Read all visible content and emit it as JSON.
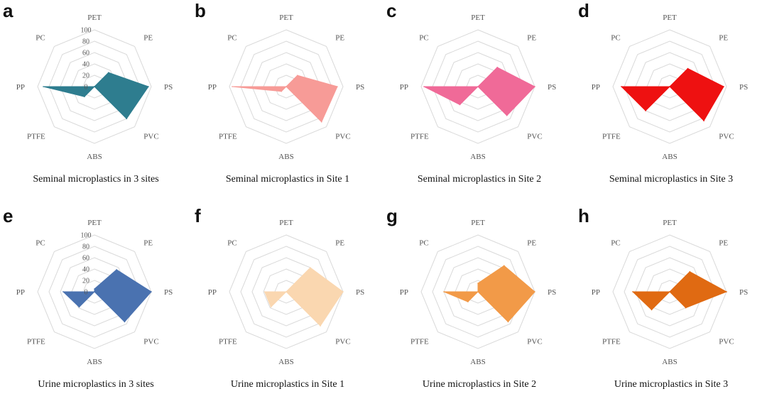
{
  "chart_data": [
    {
      "type": "radar",
      "letter": "a",
      "title": "Seminal microplastics  in 3 sites",
      "axes": [
        "PET",
        "PE",
        "PS",
        "PVC",
        "ABS",
        "PTFE",
        "PP",
        "PC"
      ],
      "rticks": [
        20,
        40,
        60,
        80,
        100
      ],
      "show_tick_labels": true,
      "rlim": [
        0,
        100
      ],
      "color": "#2e7d8f",
      "values": [
        0,
        35,
        95,
        80,
        0,
        25,
        90,
        0
      ]
    },
    {
      "type": "radar",
      "letter": "b",
      "title": "Seminal microplastics  in Site 1",
      "axes": [
        "PET",
        "PE",
        "PS",
        "PVC",
        "ABS",
        "PTFE",
        "PP",
        "PC"
      ],
      "rticks": [
        20,
        40,
        60,
        80,
        100
      ],
      "show_tick_labels": false,
      "rlim": [
        0,
        100
      ],
      "color": "#f79b97",
      "values": [
        0,
        28,
        90,
        88,
        0,
        12,
        95,
        0
      ]
    },
    {
      "type": "radar",
      "letter": "c",
      "title": "Seminal microplastics  in Site 2",
      "axes": [
        "PET",
        "PE",
        "PS",
        "PVC",
        "ABS",
        "PTFE",
        "PP",
        "PC"
      ],
      "rticks": [
        20,
        40,
        60,
        80,
        100
      ],
      "show_tick_labels": false,
      "rlim": [
        0,
        100
      ],
      "color": "#f06a98",
      "values": [
        0,
        48,
        100,
        72,
        0,
        45,
        95,
        0
      ]
    },
    {
      "type": "radar",
      "letter": "d",
      "title": "Seminal microplastics  in Site 3",
      "axes": [
        "PET",
        "PE",
        "PS",
        "PVC",
        "ABS",
        "PTFE",
        "PP",
        "PC"
      ],
      "rticks": [
        20,
        40,
        60,
        80,
        100
      ],
      "show_tick_labels": false,
      "rlim": [
        0,
        100
      ],
      "color": "#ee1111",
      "values": [
        0,
        45,
        95,
        85,
        0,
        60,
        85,
        0
      ]
    },
    {
      "type": "radar",
      "letter": "e",
      "title": "Urine microplastics  in 3 sites",
      "axes": [
        "PET",
        "PE",
        "PS",
        "PVC",
        "ABS",
        "PTFE",
        "PP",
        "PC"
      ],
      "rticks": [
        20,
        40,
        60,
        80,
        100
      ],
      "show_tick_labels": true,
      "rlim": [
        0,
        100
      ],
      "color": "#4a72b0",
      "values": [
        5,
        55,
        100,
        75,
        0,
        38,
        55,
        0
      ]
    },
    {
      "type": "radar",
      "letter": "f",
      "title": "Urine microplastics  in Site 1",
      "axes": [
        "PET",
        "PE",
        "PS",
        "PVC",
        "ABS",
        "PTFE",
        "PP",
        "PC"
      ],
      "rticks": [
        20,
        40,
        60,
        80,
        100
      ],
      "show_tick_labels": false,
      "rlim": [
        0,
        100
      ],
      "color": "#fad7b0",
      "values": [
        0,
        60,
        100,
        85,
        0,
        38,
        38,
        0
      ]
    },
    {
      "type": "radar",
      "letter": "g",
      "title": "Urine microplastics  in Site 2",
      "axes": [
        "PET",
        "PE",
        "PS",
        "PVC",
        "ABS",
        "PTFE",
        "PP",
        "PC"
      ],
      "rticks": [
        20,
        40,
        60,
        80,
        100
      ],
      "show_tick_labels": false,
      "rlim": [
        0,
        100
      ],
      "color": "#f29a48",
      "values": [
        15,
        65,
        100,
        75,
        0,
        25,
        60,
        0
      ]
    },
    {
      "type": "radar",
      "letter": "h",
      "title": "Urine microplastics  in Site 3",
      "axes": [
        "PET",
        "PE",
        "PS",
        "PVC",
        "ABS",
        "PTFE",
        "PP",
        "PC"
      ],
      "rticks": [
        20,
        40,
        60,
        80,
        100
      ],
      "show_tick_labels": false,
      "rlim": [
        0,
        100
      ],
      "color": "#e06a12",
      "values": [
        0,
        50,
        100,
        40,
        0,
        45,
        65,
        0
      ]
    }
  ]
}
